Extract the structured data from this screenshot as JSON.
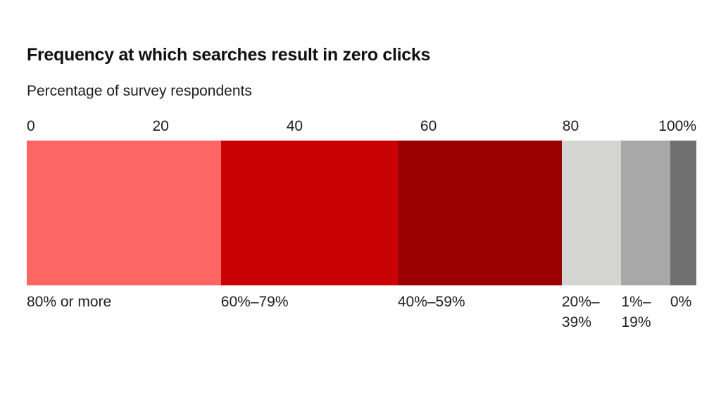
{
  "chart_data": {
    "type": "bar",
    "variant": "horizontal-stacked-100pct-single-bar",
    "title": "Frequency at which searches result in zero clicks",
    "subtitle": "Percentage of survey respondents",
    "xlabel": "Percentage of survey respondents",
    "xlim": [
      0,
      100
    ],
    "grid": false,
    "legend_position": "labels-below-bar",
    "x_ticks": [
      {
        "label": "0",
        "pos": 0,
        "align": "left"
      },
      {
        "label": "20",
        "pos": 20,
        "align": "center"
      },
      {
        "label": "40",
        "pos": 40,
        "align": "center"
      },
      {
        "label": "60",
        "pos": 60,
        "align": "center"
      },
      {
        "label": "80",
        "pos": 80,
        "align": "left"
      },
      {
        "label": "100%",
        "pos": 100,
        "align": "right"
      }
    ],
    "segments": [
      {
        "label": "80% or more",
        "value": 29,
        "width_pct": 29.0,
        "color": "#fe6663"
      },
      {
        "label": "60%–79%",
        "value": 26,
        "width_pct": 26.4,
        "color": "#c90303"
      },
      {
        "label": "40%–59%",
        "value": 25,
        "width_pct": 24.5,
        "color": "#9a0000"
      },
      {
        "label": "20%–39%",
        "value": 9,
        "width_pct": 8.9,
        "color": "#d4d4d2"
      },
      {
        "label": "1%–19%",
        "value": 7,
        "width_pct": 7.3,
        "color": "#a8a8a8"
      },
      {
        "label": "0%",
        "value": 4,
        "width_pct": 3.9,
        "color": "#707070"
      }
    ],
    "colors": {
      "text": "#1d1d1d",
      "title_text": "#111111",
      "background": "#ffffff"
    }
  }
}
